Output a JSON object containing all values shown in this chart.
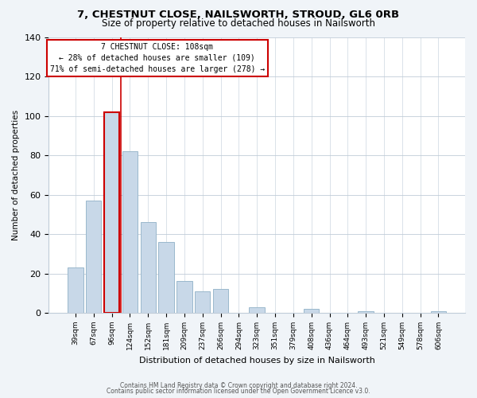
{
  "title": "7, CHESTNUT CLOSE, NAILSWORTH, STROUD, GL6 0RB",
  "subtitle": "Size of property relative to detached houses in Nailsworth",
  "xlabel": "Distribution of detached houses by size in Nailsworth",
  "ylabel": "Number of detached properties",
  "bar_labels": [
    "39sqm",
    "67sqm",
    "96sqm",
    "124sqm",
    "152sqm",
    "181sqm",
    "209sqm",
    "237sqm",
    "266sqm",
    "294sqm",
    "323sqm",
    "351sqm",
    "379sqm",
    "408sqm",
    "436sqm",
    "464sqm",
    "493sqm",
    "521sqm",
    "549sqm",
    "578sqm",
    "606sqm"
  ],
  "bar_values": [
    23,
    57,
    102,
    82,
    46,
    36,
    16,
    11,
    12,
    0,
    3,
    0,
    0,
    2,
    0,
    0,
    1,
    0,
    0,
    0,
    1
  ],
  "bar_color": "#c8d8e8",
  "bar_edge_color": "#9ab8cc",
  "highlight_bar_index": 2,
  "vline_color": "#cc0000",
  "ylim": [
    0,
    140
  ],
  "yticks": [
    0,
    20,
    40,
    60,
    80,
    100,
    120,
    140
  ],
  "annotation_title": "7 CHESTNUT CLOSE: 108sqm",
  "annotation_line1": "← 28% of detached houses are smaller (109)",
  "annotation_line2": "71% of semi-detached houses are larger (278) →",
  "footer_line1": "Contains HM Land Registry data © Crown copyright and database right 2024.",
  "footer_line2": "Contains public sector information licensed under the Open Government Licence v3.0.",
  "background_color": "#f0f4f8",
  "plot_bg_color": "#ffffff",
  "grid_color": "#c0ccd8",
  "title_fontsize": 9.5,
  "subtitle_fontsize": 8.5
}
